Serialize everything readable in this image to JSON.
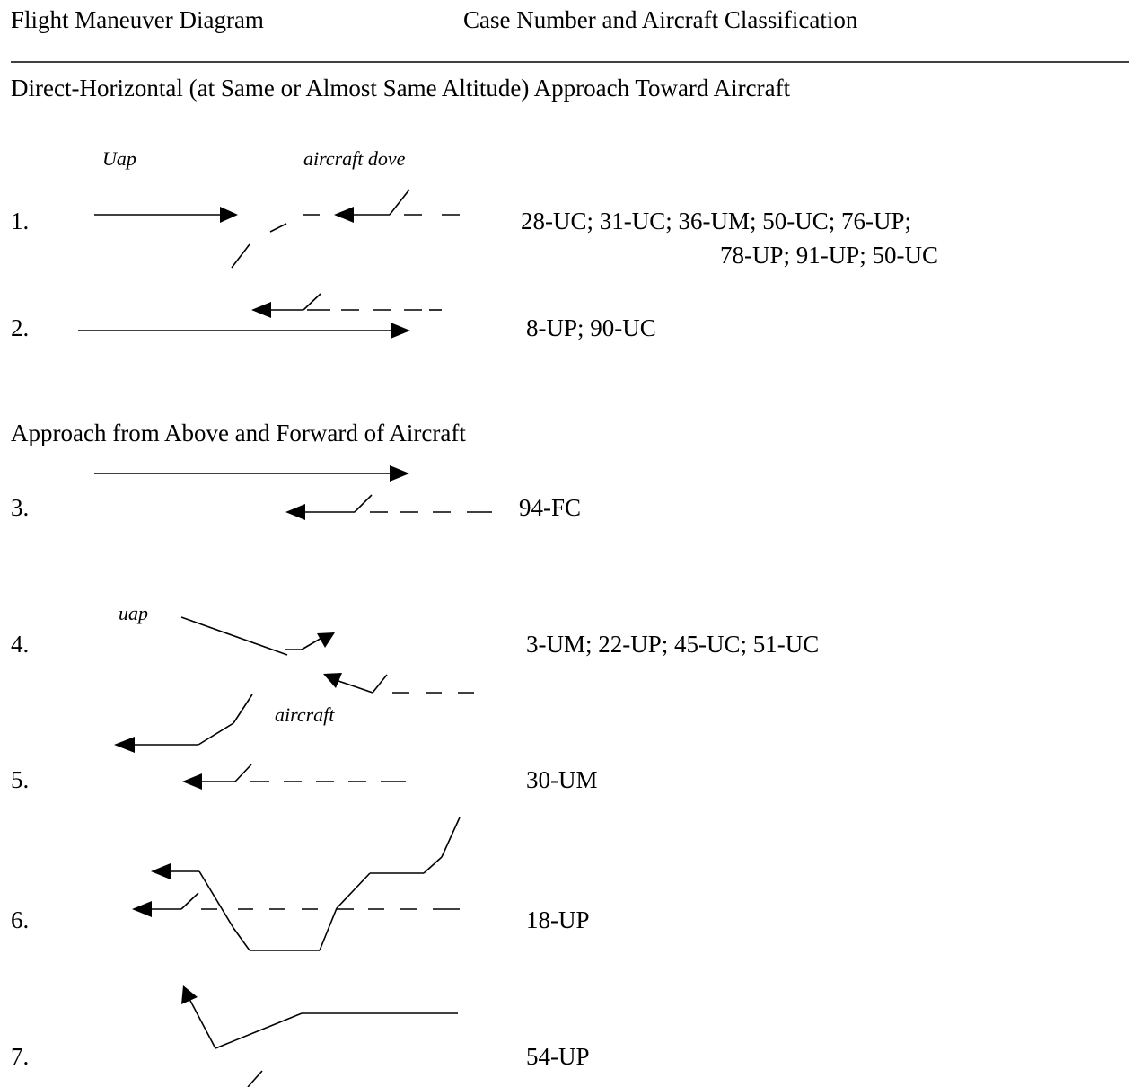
{
  "header": {
    "left_title": "Flight Maneuver Diagram",
    "right_title": "Case Number and Aircraft Classification"
  },
  "sections": [
    {
      "heading": "Direct-Horizontal (at Same or Almost Same Altitude) Approach Toward Aircraft",
      "items": [
        {
          "number": "1.",
          "labels": [
            "Uap",
            "aircraft dove"
          ],
          "cases_line1": "28-UC;  31-UC;  36-UM;  50-UC; 76-UP;",
          "cases_line2": "78-UP; 91-UP; 50-UC"
        },
        {
          "number": "2.",
          "cases_line1": "8-UP;  90-UC"
        }
      ]
    },
    {
      "heading": "Approach from Above and Forward of Aircraft",
      "items": [
        {
          "number": "3.",
          "cases_line1": "94-FC"
        },
        {
          "number": "4.",
          "labels": [
            "uap",
            "aircraft"
          ],
          "cases_line1": "3-UM;  22-UP;  45-UC;  51-UC"
        },
        {
          "number": "5.",
          "cases_line1": "30-UM"
        },
        {
          "number": "6.",
          "cases_line1": "18-UP"
        },
        {
          "number": "7.",
          "cases_line1": "54-UP"
        }
      ]
    }
  ]
}
